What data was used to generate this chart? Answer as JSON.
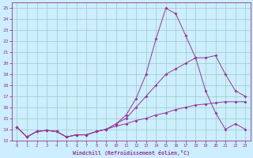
{
  "xlabel": "Windchill (Refroidissement éolien,°C)",
  "background_color": "#cceeff",
  "grid_color": "#99ccbb",
  "line_color": "#993399",
  "xlim": [
    -0.5,
    23.5
  ],
  "ylim": [
    13,
    25.5
  ],
  "yticks": [
    13,
    14,
    15,
    16,
    17,
    18,
    19,
    20,
    21,
    22,
    23,
    24,
    25
  ],
  "xticks": [
    0,
    1,
    2,
    3,
    4,
    5,
    6,
    7,
    8,
    9,
    10,
    11,
    12,
    13,
    14,
    15,
    16,
    17,
    18,
    19,
    20,
    21,
    22,
    23
  ],
  "line1_x": [
    0,
    1,
    2,
    3,
    4,
    5,
    6,
    7,
    8,
    9,
    10,
    11,
    12,
    13,
    14,
    15,
    16,
    17,
    18,
    19,
    20,
    21,
    22,
    23
  ],
  "line1_y": [
    14.2,
    13.3,
    13.8,
    13.9,
    13.8,
    13.3,
    13.5,
    13.5,
    13.8,
    14.0,
    14.5,
    15.3,
    16.8,
    19.0,
    22.2,
    25.0,
    24.5,
    22.5,
    20.5,
    17.5,
    15.5,
    14.0,
    14.5,
    14.0
  ],
  "line2_x": [
    0,
    1,
    2,
    3,
    4,
    5,
    6,
    7,
    8,
    9,
    10,
    11,
    12,
    13,
    14,
    15,
    16,
    17,
    18,
    19,
    20,
    21,
    22,
    23
  ],
  "line2_y": [
    14.2,
    13.3,
    13.8,
    13.9,
    13.8,
    13.3,
    13.5,
    13.5,
    13.8,
    14.0,
    14.5,
    15.0,
    16.0,
    17.0,
    18.0,
    19.0,
    19.5,
    20.0,
    20.5,
    20.5,
    20.7,
    19.0,
    17.5,
    17.0
  ],
  "line3_x": [
    0,
    1,
    2,
    3,
    4,
    5,
    6,
    7,
    8,
    9,
    10,
    11,
    12,
    13,
    14,
    15,
    16,
    17,
    18,
    19,
    20,
    21,
    22,
    23
  ],
  "line3_y": [
    14.2,
    13.3,
    13.8,
    13.9,
    13.8,
    13.3,
    13.5,
    13.5,
    13.8,
    14.0,
    14.3,
    14.5,
    14.8,
    15.0,
    15.3,
    15.5,
    15.8,
    16.0,
    16.2,
    16.3,
    16.4,
    16.5,
    16.5,
    16.5
  ]
}
